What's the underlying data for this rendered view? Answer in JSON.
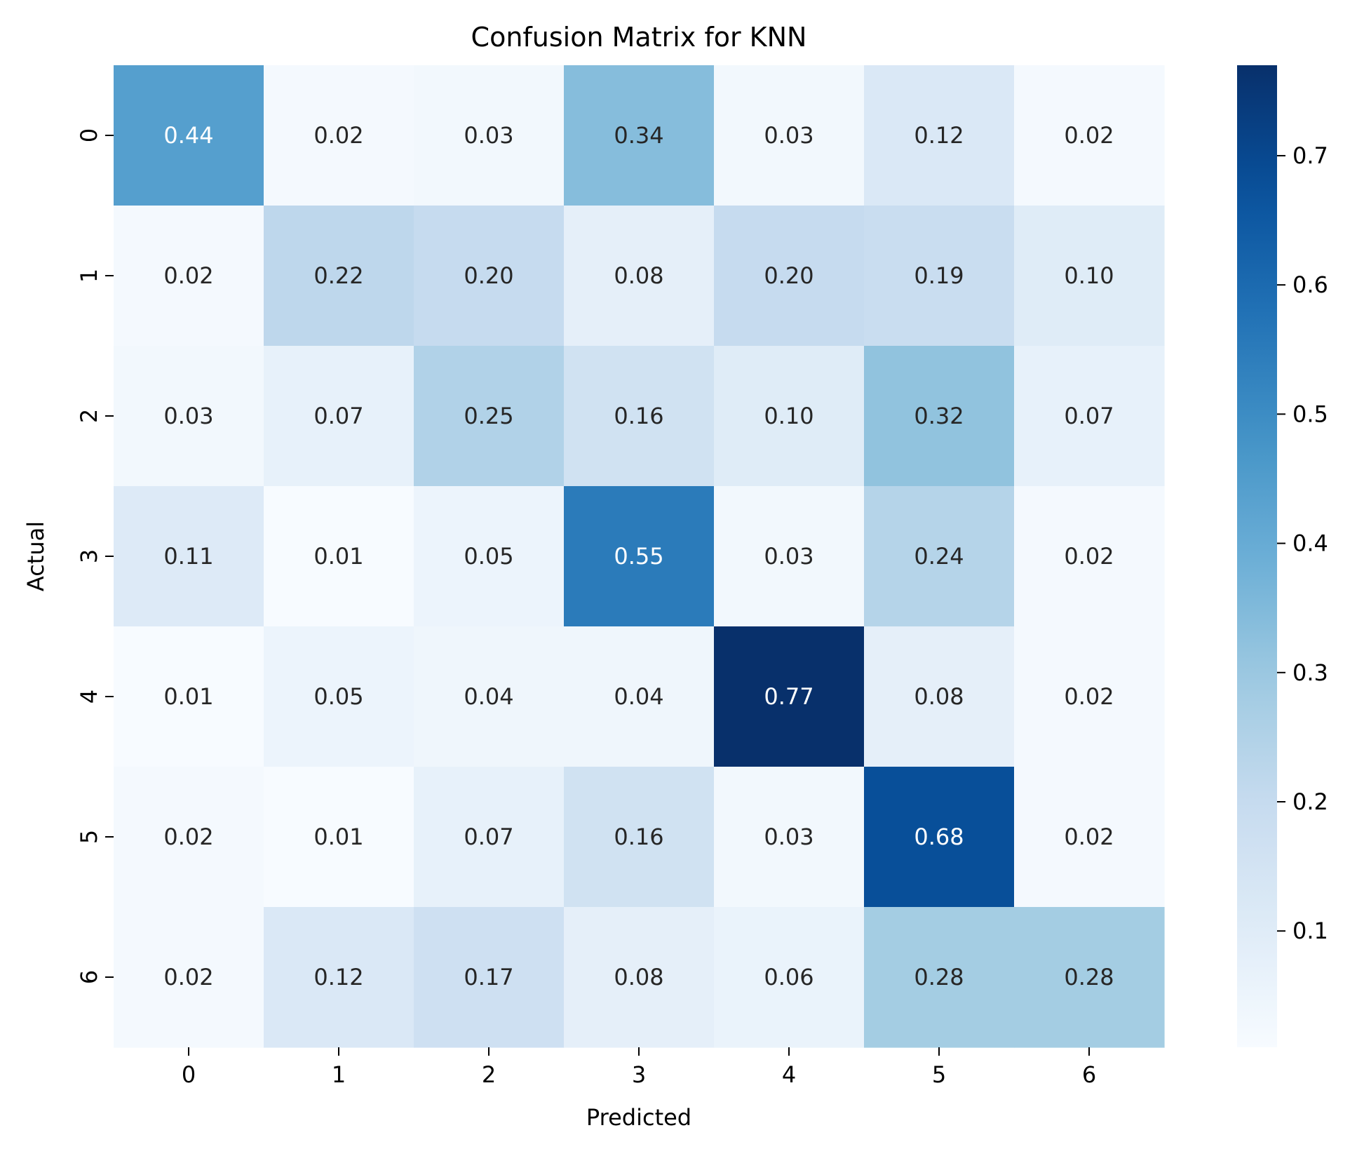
{
  "chart_data": {
    "type": "heatmap",
    "title": "Confusion Matrix for KNN",
    "xlabel": "Predicted",
    "ylabel": "Actual",
    "x_categories": [
      "0",
      "1",
      "2",
      "3",
      "4",
      "5",
      "6"
    ],
    "y_categories": [
      "0",
      "1",
      "2",
      "3",
      "4",
      "5",
      "6"
    ],
    "values": [
      [
        0.44,
        0.02,
        0.03,
        0.34,
        0.03,
        0.12,
        0.02
      ],
      [
        0.02,
        0.22,
        0.2,
        0.08,
        0.2,
        0.19,
        0.1
      ],
      [
        0.03,
        0.07,
        0.25,
        0.16,
        0.1,
        0.32,
        0.07
      ],
      [
        0.11,
        0.01,
        0.05,
        0.55,
        0.03,
        0.24,
        0.02
      ],
      [
        0.01,
        0.05,
        0.04,
        0.04,
        0.77,
        0.08,
        0.02
      ],
      [
        0.02,
        0.01,
        0.07,
        0.16,
        0.03,
        0.68,
        0.02
      ],
      [
        0.02,
        0.12,
        0.17,
        0.08,
        0.06,
        0.28,
        0.28
      ]
    ],
    "value_format": "0.00",
    "colormap": "Blues",
    "color_range": [
      0.01,
      0.77
    ],
    "colorbar": {
      "ticks": [
        0.1,
        0.2,
        0.3,
        0.4,
        0.5,
        0.6,
        0.7
      ],
      "tick_labels": [
        "0.1",
        "0.2",
        "0.3",
        "0.4",
        "0.5",
        "0.6",
        "0.7"
      ],
      "placement": "right"
    },
    "colors": {
      "light_text": "#ffffff",
      "dark_text": "#262626"
    },
    "grid": false
  }
}
